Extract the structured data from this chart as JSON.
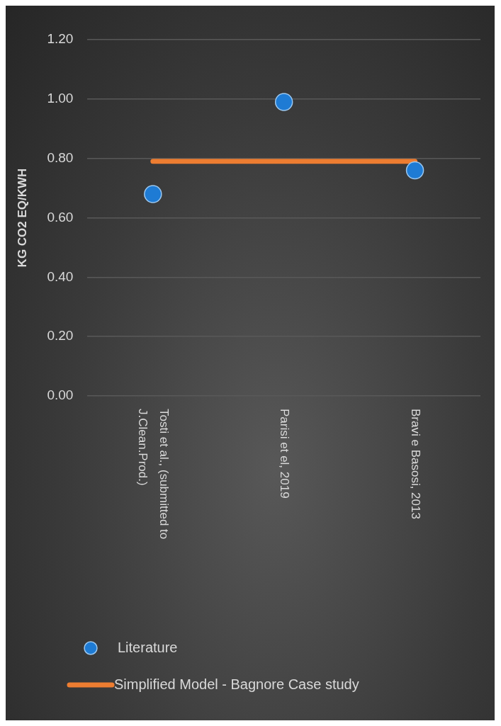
{
  "chart_data": {
    "type": "line",
    "ylabel": "KG CO2 EQ/KWH",
    "categories": [
      "Tosti et al., (submitted to J.Clean.Prod.)",
      "Parisi et el, 2019",
      "Bravi e Basosi, 2013"
    ],
    "series": [
      {
        "name": "Literature",
        "type": "scatter",
        "color": "#1e7bd4",
        "marker": "circle",
        "values": [
          0.68,
          0.99,
          0.76
        ]
      },
      {
        "name": "Simplified Model - Bagnore Case study",
        "color": "#ed7d31",
        "marker": "none",
        "values": [
          0.79,
          0.79,
          0.79
        ]
      }
    ],
    "ylim": [
      0,
      1.2
    ],
    "yticks": [
      {
        "value": 0,
        "label": "0.00"
      },
      {
        "value": 0.2,
        "label": "0.20"
      },
      {
        "value": 0.4,
        "label": "0.40"
      },
      {
        "value": 0.6,
        "label": "0.60"
      },
      {
        "value": 0.8,
        "label": "0.80"
      },
      {
        "value": 1.0,
        "label": "1.00"
      },
      {
        "value": 1.2,
        "label": "1.20"
      }
    ],
    "grid": "y",
    "legend": "bottom left"
  }
}
